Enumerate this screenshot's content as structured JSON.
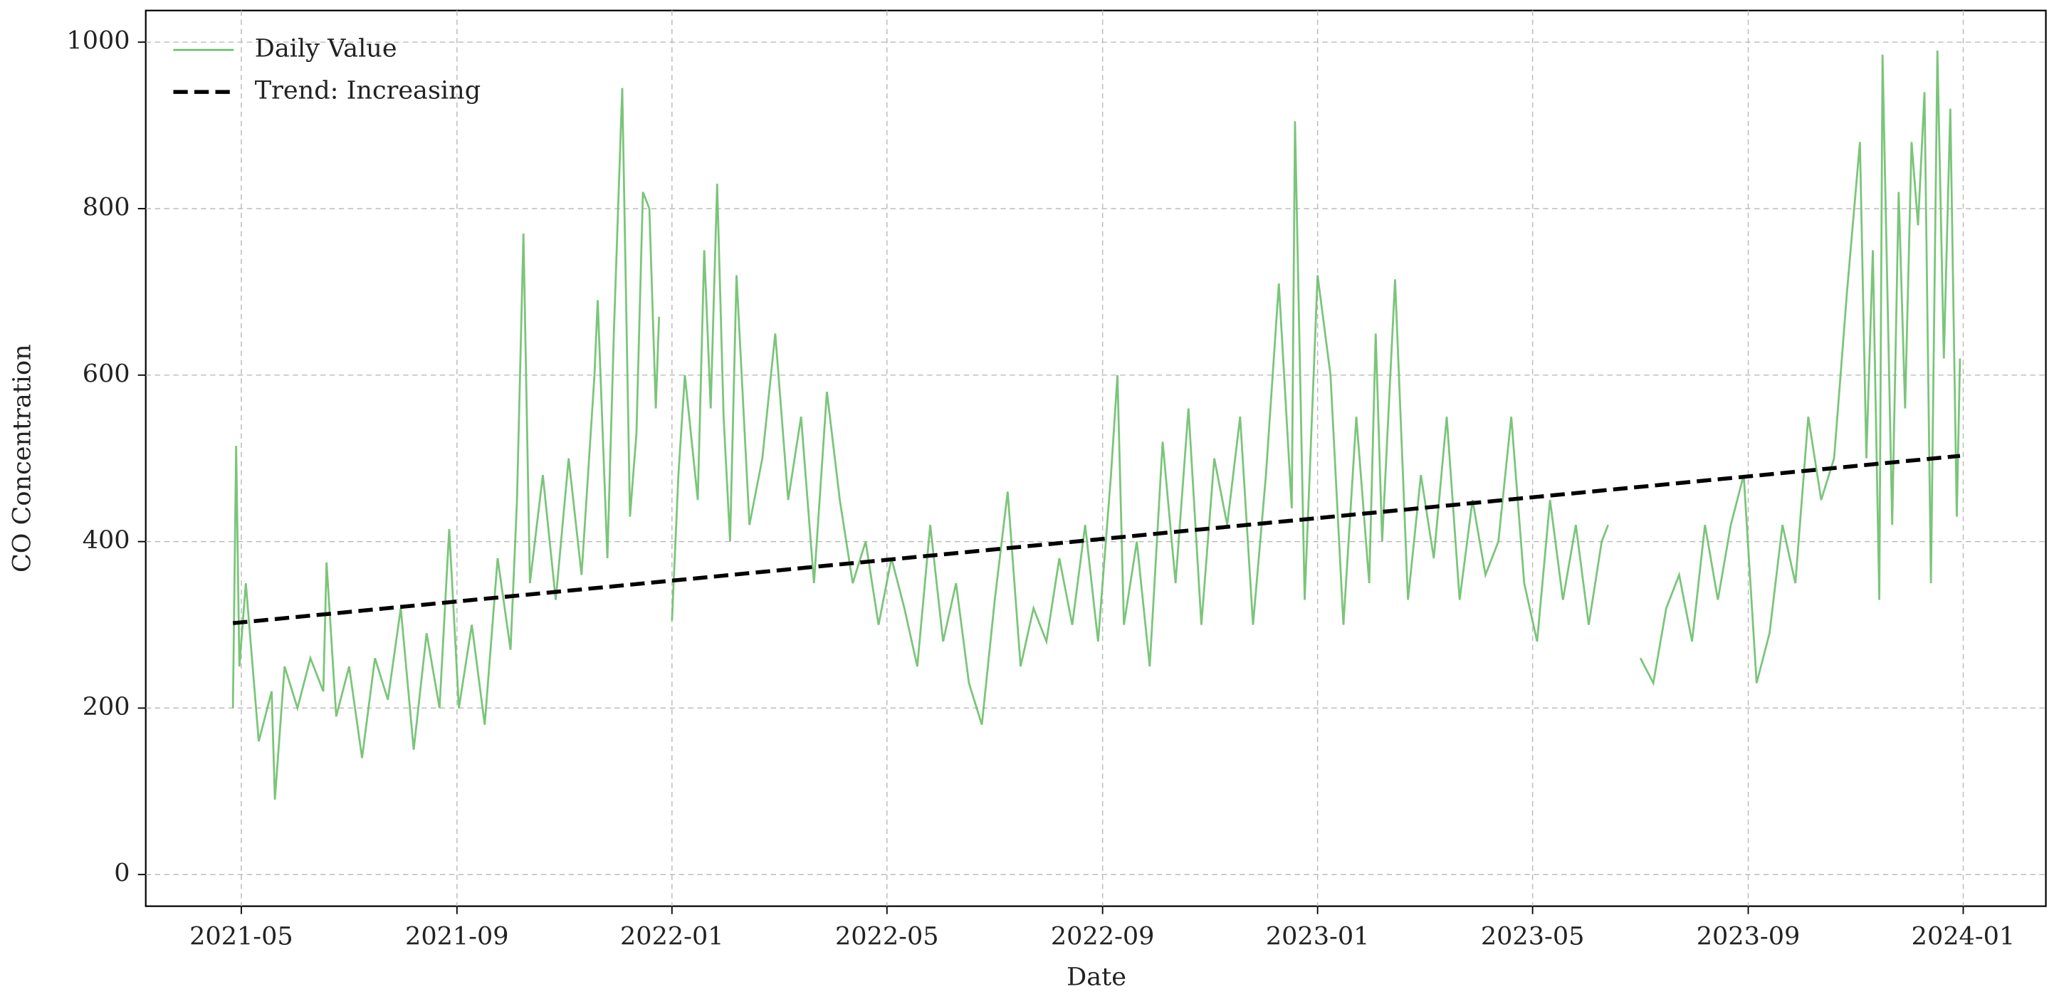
{
  "chart_data": {
    "type": "line",
    "x_label": "Date",
    "y_label": "CO Concentration",
    "xlim": [
      2021.185,
      2024.128
    ],
    "ylim": [
      -38,
      1038
    ],
    "xticks": [
      {
        "value": 2021.333,
        "label": "2021-05"
      },
      {
        "value": 2021.667,
        "label": "2021-09"
      },
      {
        "value": 2022.0,
        "label": "2022-01"
      },
      {
        "value": 2022.333,
        "label": "2022-05"
      },
      {
        "value": 2022.667,
        "label": "2022-09"
      },
      {
        "value": 2023.0,
        "label": "2023-01"
      },
      {
        "value": 2023.333,
        "label": "2023-05"
      },
      {
        "value": 2023.667,
        "label": "2023-09"
      },
      {
        "value": 2024.0,
        "label": "2024-01"
      }
    ],
    "yticks": [
      0,
      200,
      400,
      600,
      800,
      1000
    ],
    "grid": true,
    "legend": "upper left",
    "series": [
      {
        "name": "Daily Value",
        "color": "#6cbf6c",
        "style": "solid",
        "x": [
          2021.32,
          2021.325,
          2021.33,
          2021.34,
          2021.36,
          2021.38,
          2021.385,
          2021.4,
          2021.42,
          2021.44,
          2021.46,
          2021.465,
          2021.48,
          2021.5,
          2021.52,
          2021.54,
          2021.56,
          2021.58,
          2021.6,
          2021.62,
          2021.64,
          2021.655,
          2021.67,
          2021.69,
          2021.71,
          2021.73,
          2021.75,
          2021.76,
          2021.77,
          2021.78,
          2021.8,
          2021.82,
          2021.84,
          2021.86,
          2021.88,
          2021.885,
          2021.9,
          2021.91,
          2021.923,
          2021.935,
          2021.945,
          2021.955,
          2021.965,
          2021.975,
          2021.98,
          2021.99,
          2022.0,
          2022.01,
          2022.02,
          2022.04,
          2022.05,
          2022.06,
          2022.07,
          2022.08,
          2022.09,
          2022.1,
          2022.12,
          2022.14,
          2022.16,
          2022.18,
          2022.2,
          2022.22,
          2022.24,
          2022.26,
          2022.28,
          2022.3,
          2022.32,
          2022.34,
          2022.36,
          2022.38,
          2022.4,
          2022.42,
          2022.44,
          2022.46,
          2022.48,
          2022.5,
          2022.52,
          2022.54,
          2022.56,
          2022.58,
          2022.6,
          2022.62,
          2022.64,
          2022.66,
          2022.68,
          2022.69,
          2022.7,
          2022.72,
          2022.74,
          2022.76,
          2022.78,
          2022.8,
          2022.82,
          2022.84,
          2022.86,
          2022.88,
          2022.9,
          2022.92,
          2022.94,
          2022.96,
          2022.965,
          2022.98,
          2023.0,
          2023.02,
          2023.04,
          2023.06,
          2023.08,
          2023.09,
          2023.1,
          2023.12,
          2023.14,
          2023.16,
          2023.18,
          2023.2,
          2023.22,
          2023.24,
          2023.26,
          2023.28,
          2023.3,
          2023.32,
          2023.34,
          2023.36,
          2023.38,
          2023.4,
          2023.42,
          2023.44,
          2023.45,
          2023.47,
          2023.5,
          2023.52,
          2023.54,
          2023.56,
          2023.58,
          2023.6,
          2023.62,
          2023.64,
          2023.66,
          2023.68,
          2023.7,
          2023.72,
          2023.74,
          2023.76,
          2023.78,
          2023.8,
          2023.82,
          2023.84,
          2023.85,
          2023.86,
          2023.87,
          2023.875,
          2023.89,
          2023.9,
          2023.91,
          2023.92,
          2023.93,
          2023.94,
          2023.95,
          2023.96,
          2023.97,
          2023.98,
          2023.99,
          2023.995
        ],
        "values": [
          200,
          515,
          250,
          350,
          160,
          220,
          90,
          250,
          200,
          260,
          220,
          375,
          190,
          250,
          140,
          260,
          210,
          320,
          150,
          290,
          200,
          415,
          200,
          300,
          180,
          380,
          270,
          450,
          770,
          350,
          480,
          330,
          500,
          360,
          600,
          690,
          380,
          650,
          945,
          430,
          530,
          820,
          800,
          560,
          670,
          null,
          305,
          480,
          600,
          450,
          750,
          560,
          830,
          550,
          400,
          720,
          420,
          500,
          650,
          450,
          550,
          350,
          580,
          450,
          350,
          400,
          300,
          380,
          320,
          250,
          420,
          280,
          350,
          230,
          180,
          330,
          460,
          250,
          320,
          280,
          380,
          300,
          420,
          280,
          480,
          600,
          300,
          400,
          250,
          520,
          350,
          560,
          300,
          500,
          420,
          550,
          300,
          480,
          710,
          440,
          905,
          330,
          720,
          600,
          300,
          550,
          350,
          650,
          400,
          715,
          330,
          480,
          380,
          550,
          330,
          450,
          360,
          400,
          550,
          350,
          280,
          450,
          330,
          420,
          300,
          400,
          420,
          null,
          260,
          230,
          320,
          360,
          280,
          420,
          330,
          420,
          480,
          230,
          290,
          420,
          350,
          550,
          450,
          500,
          700,
          880,
          500,
          750,
          330,
          985,
          420,
          820,
          560,
          880,
          780,
          940,
          350,
          990,
          620,
          920,
          430,
          620
        ]
      },
      {
        "name": "Trend: Increasing",
        "color": "#000000",
        "style": "dashed",
        "x": [
          2021.32,
          2023.995
        ],
        "values": [
          302,
          503
        ]
      }
    ]
  }
}
